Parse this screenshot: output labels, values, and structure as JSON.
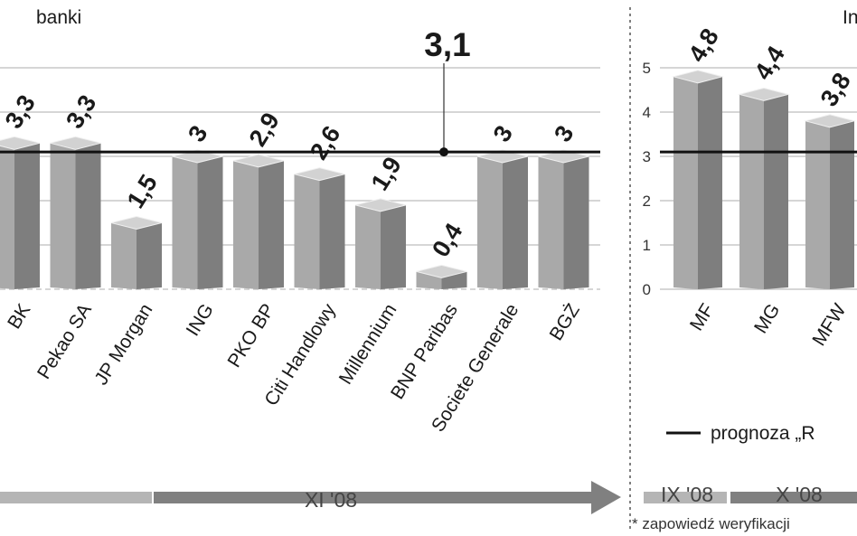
{
  "chart_data": [
    {
      "type": "bar",
      "section_label": "banki",
      "categories": [
        "BZ WBK",
        "Pekao SA",
        "JP Morgan",
        "ING",
        "PKO BP",
        "Citi Handlowy",
        "Millennium",
        "BNP Paribas",
        "Societe Generale",
        "BGŻ"
      ],
      "category_labels_visible": [
        "BK",
        "Pekao SA",
        "JP Morgan",
        "ING",
        "PKO BP",
        "Citi Handlowy",
        "Millennium",
        "BNP Paribas",
        "Societe Generale",
        "BGŻ"
      ],
      "values": [
        3.3,
        3.3,
        1.5,
        3,
        2.9,
        2.6,
        1.9,
        0.4,
        3,
        3
      ],
      "value_labels": [
        "3,3",
        "3,3",
        "1,5",
        "3",
        "2,9",
        "2,6",
        "1,9",
        "0,4",
        "3",
        "3"
      ],
      "reference_line": {
        "value": 3.1,
        "label": "3,1"
      },
      "ylim": [
        0,
        5
      ],
      "grid": true,
      "timeline_label": "XI '08"
    },
    {
      "type": "bar",
      "section_label": "In",
      "categories": [
        "MF",
        "MG",
        "MFW"
      ],
      "values": [
        4.8,
        4.4,
        3.8
      ],
      "value_labels": [
        "4,8",
        "4,4",
        "3,8"
      ],
      "yticks": [
        "0",
        "1",
        "2",
        "3",
        "4",
        "5"
      ],
      "ylim": [
        0,
        5
      ],
      "grid": true,
      "reference_line": {
        "value": 3.1
      },
      "legend": {
        "label": "prognoza „R",
        "position": "bottom"
      },
      "timeline_labels": [
        "IX '08",
        "X '08"
      ],
      "footnote": "* zapowiedź weryfikacji"
    }
  ],
  "colors": {
    "bar_front": "#a9a9a9",
    "bar_side": "#7e7e7e",
    "bar_top": "#d2d2d2",
    "grid": "#bdbdbd",
    "reference": "#111111",
    "timeline_light": "#b5b5b5",
    "timeline_dark": "#808080"
  }
}
